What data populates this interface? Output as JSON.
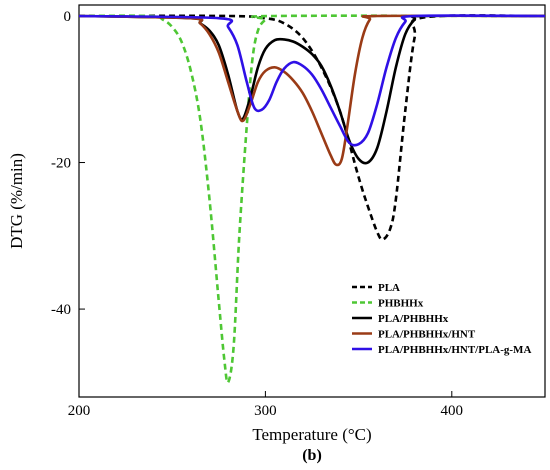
{
  "chart_data": {
    "type": "line",
    "xlabel": "Temperature (°C)",
    "ylabel": "DTG (%/min)",
    "panel_label": "(b)",
    "xlim": [
      200,
      450
    ],
    "ylim": [
      -52,
      1.5
    ],
    "xticks": [
      200,
      300,
      400
    ],
    "yticks": [
      0,
      -20,
      -40
    ],
    "legend_position": "bottom-right",
    "series": [
      {
        "name": "PLA",
        "color": "#000000",
        "dash": "dashed",
        "x": [
          200,
          280,
          300,
          310,
          320,
          330,
          340,
          350,
          355,
          360,
          363,
          367,
          370,
          375,
          380,
          385,
          450
        ],
        "y": [
          0,
          0,
          -0.3,
          -1,
          -3,
          -7,
          -13,
          -22,
          -26,
          -29.5,
          -30.5,
          -29,
          -25,
          -13,
          -3,
          -0.2,
          0
        ]
      },
      {
        "name": "PHBHHx",
        "color": "#4ec734",
        "dash": "dashed",
        "x": [
          200,
          238,
          245,
          250,
          255,
          260,
          265,
          270,
          275,
          278,
          280,
          283,
          286,
          290,
          293,
          296,
          300,
          305,
          450
        ],
        "y": [
          0,
          0,
          -0.5,
          -1.5,
          -3.5,
          -7.5,
          -14,
          -25,
          -39,
          -47,
          -50,
          -45,
          -30,
          -15,
          -6,
          -2,
          -0.5,
          0,
          0
        ]
      },
      {
        "name": "PLA/PHBHHx",
        "color": "#000000",
        "dash": "solid",
        "x": [
          200,
          260,
          265,
          270,
          275,
          280,
          285,
          288,
          292,
          296,
          300,
          305,
          310,
          315,
          320,
          325,
          330,
          335,
          340,
          345,
          350,
          355,
          360,
          365,
          370,
          375,
          380,
          385,
          450
        ],
        "y": [
          0,
          -0.3,
          -1,
          -2,
          -4,
          -8,
          -13,
          -14,
          -11,
          -7,
          -4.5,
          -3.3,
          -3.2,
          -3.5,
          -4.2,
          -5.2,
          -6.8,
          -9.5,
          -13,
          -17,
          -19.5,
          -20,
          -18,
          -13,
          -7,
          -2.5,
          -0.5,
          0,
          0
        ]
      },
      {
        "name": "PLA/PHBHHx/HNT",
        "color": "#9a3b16",
        "dash": "solid",
        "x": [
          200,
          260,
          265,
          270,
          275,
          280,
          285,
          288,
          292,
          296,
          300,
          305,
          310,
          315,
          320,
          325,
          330,
          335,
          338,
          341,
          344,
          348,
          352,
          356,
          360,
          450
        ],
        "y": [
          0,
          -0.3,
          -1,
          -2.5,
          -5,
          -9,
          -13,
          -14.3,
          -12,
          -9,
          -7.5,
          -7,
          -7.6,
          -8.8,
          -10.5,
          -13,
          -16,
          -19,
          -20.3,
          -19.5,
          -15,
          -8,
          -3,
          -0.5,
          0,
          0
        ]
      },
      {
        "name": "PLA/PHBHHx/HNT/PLA-g-MA",
        "color": "#2f10e6",
        "dash": "solid",
        "x": [
          200,
          275,
          280,
          285,
          290,
          294,
          298,
          302,
          306,
          310,
          315,
          320,
          325,
          330,
          335,
          340,
          345,
          350,
          355,
          360,
          365,
          370,
          375,
          380,
          450
        ],
        "y": [
          0,
          -0.3,
          -1.5,
          -4,
          -9,
          -12.5,
          -12.8,
          -11.5,
          -9,
          -7.2,
          -6.3,
          -6.8,
          -8,
          -10,
          -12.5,
          -15,
          -17.3,
          -17.5,
          -16,
          -12,
          -7,
          -3,
          -0.8,
          0,
          0
        ]
      }
    ]
  }
}
